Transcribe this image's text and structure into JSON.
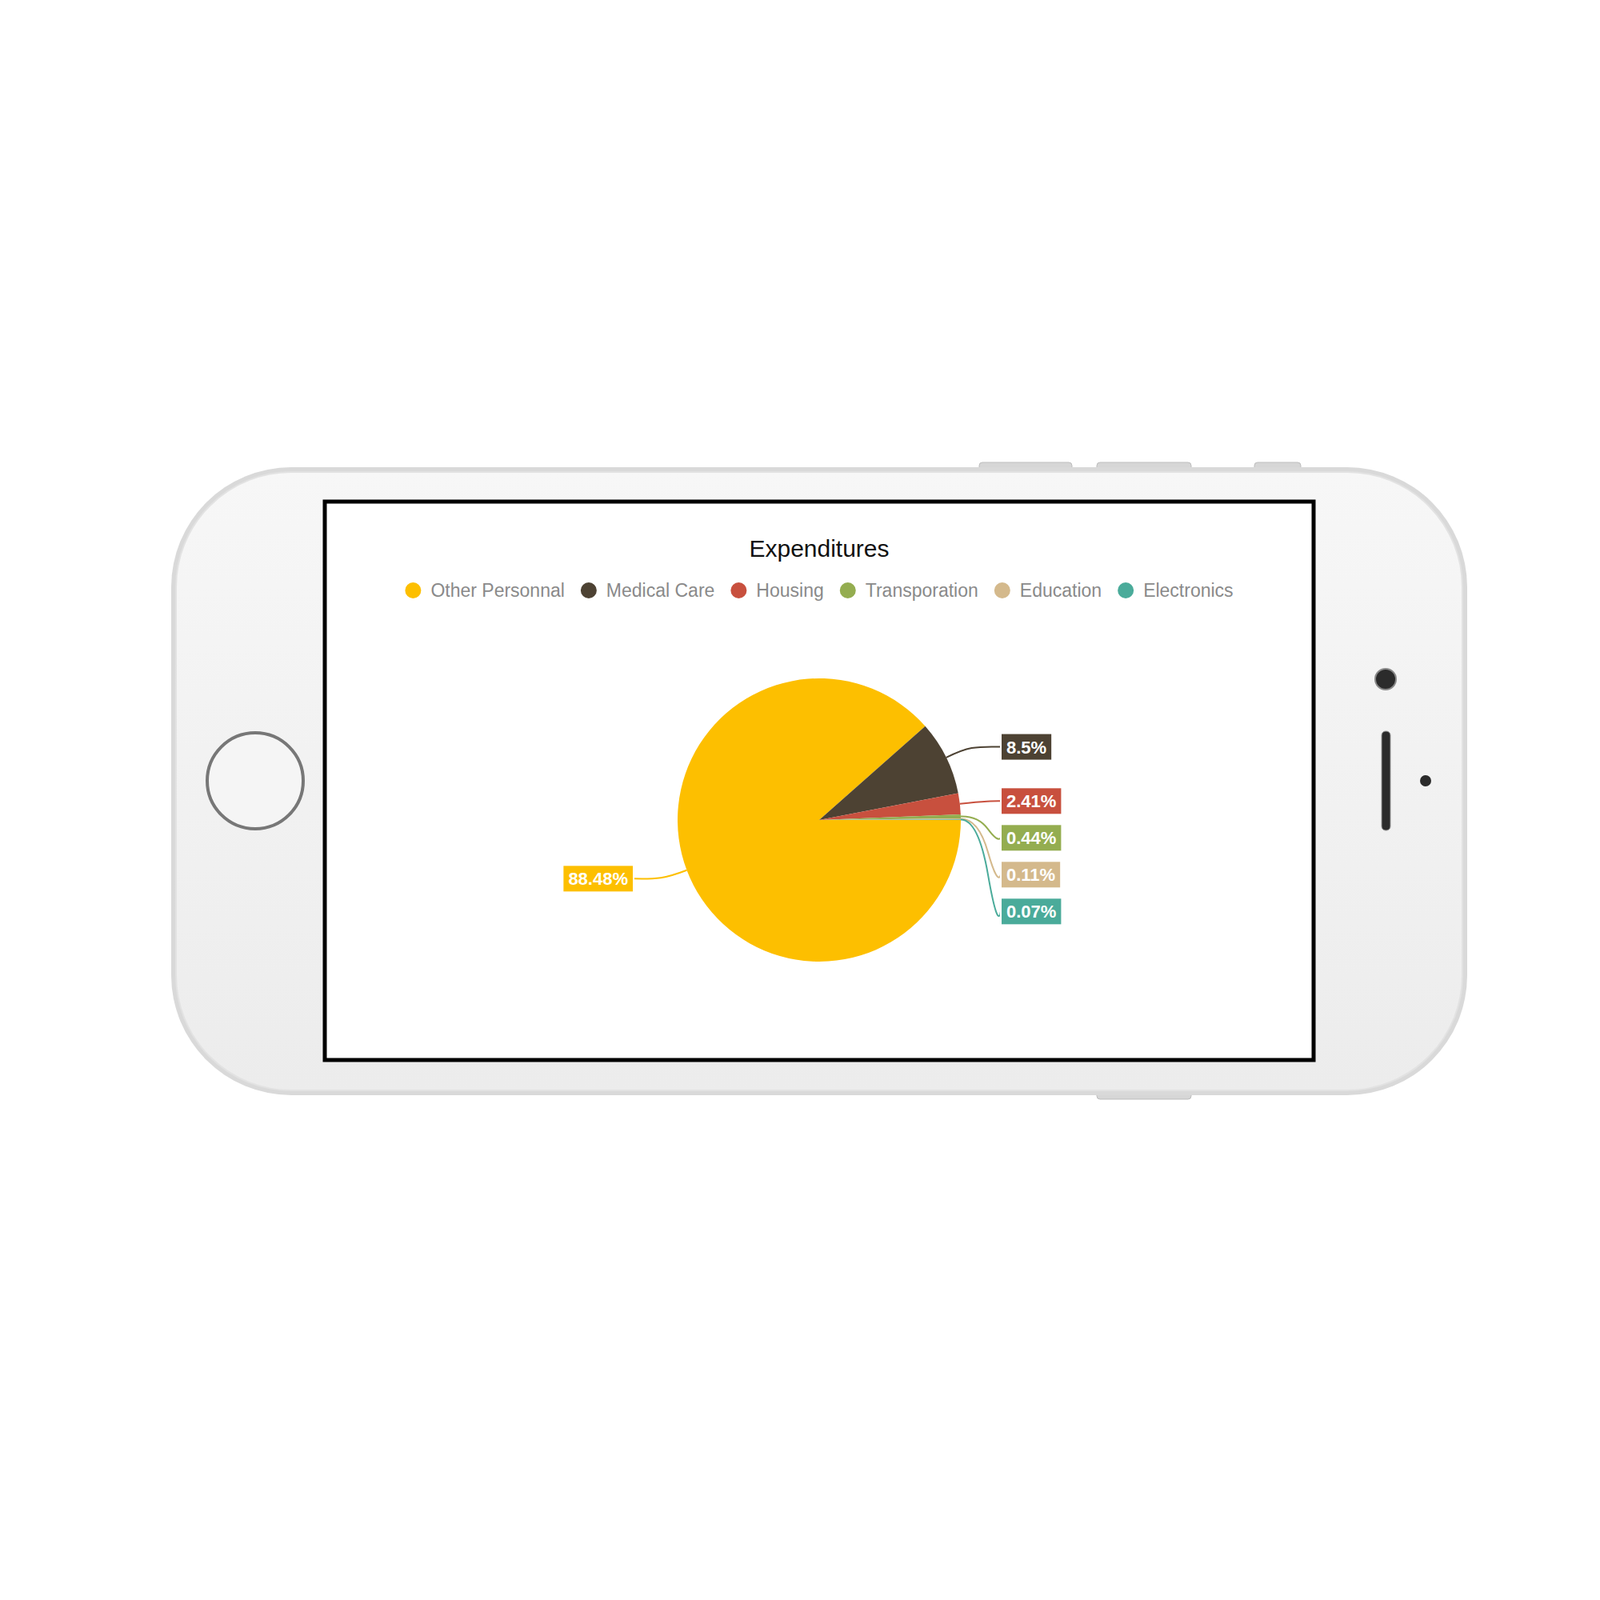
{
  "chart_data": {
    "type": "pie",
    "title": "Expenditures",
    "categories": [
      "Other Personnal",
      "Medical Care",
      "Housing",
      "Transporation",
      "Education",
      "Electronics"
    ],
    "values": [
      88.48,
      8.5,
      2.41,
      0.44,
      0.11,
      0.07
    ],
    "value_labels": [
      "88.48%",
      "8.5%",
      "2.41%",
      "0.44%",
      "0.11%",
      "0.07%"
    ],
    "colors": [
      "#fdbf00",
      "#4d4233",
      "#c8503e",
      "#94ad50",
      "#d4b98c",
      "#4aab9a"
    ],
    "legend": "top",
    "data_labels": true
  }
}
